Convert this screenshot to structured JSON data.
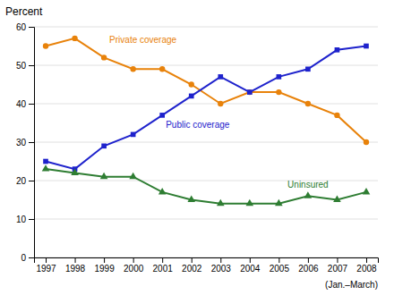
{
  "chart_data": {
    "type": "line",
    "y_label": "Percent",
    "annotations": [
      "(Jan.–March)"
    ],
    "x": [
      1997,
      1998,
      1999,
      2000,
      2001,
      2002,
      2003,
      2004,
      2005,
      2006,
      2007,
      2008
    ],
    "xlim": [
      1996.6,
      2008.4
    ],
    "xticks": [
      1997,
      1998,
      1999,
      2000,
      2001,
      2002,
      2003,
      2004,
      2005,
      2006,
      2007,
      2008
    ],
    "ylim": [
      0,
      60
    ],
    "yticks": [
      0,
      10,
      20,
      30,
      40,
      50,
      60
    ],
    "grid": true,
    "series": [
      {
        "name": "Private coverage",
        "color": "#E8820A",
        "marker": "circle",
        "values": [
          55,
          57,
          52,
          49,
          49,
          45,
          40,
          43,
          43,
          40,
          37,
          30
        ]
      },
      {
        "name": "Public coverage",
        "color": "#1E22CC",
        "marker": "square",
        "values": [
          25,
          23,
          29,
          32,
          37,
          42,
          47,
          43,
          47,
          49,
          54,
          55
        ]
      },
      {
        "name": "Uninsured",
        "color": "#2E7D32",
        "marker": "triangle",
        "values": [
          23,
          22,
          21,
          21,
          17,
          15,
          14,
          14,
          14,
          16,
          15,
          17
        ]
      }
    ]
  }
}
